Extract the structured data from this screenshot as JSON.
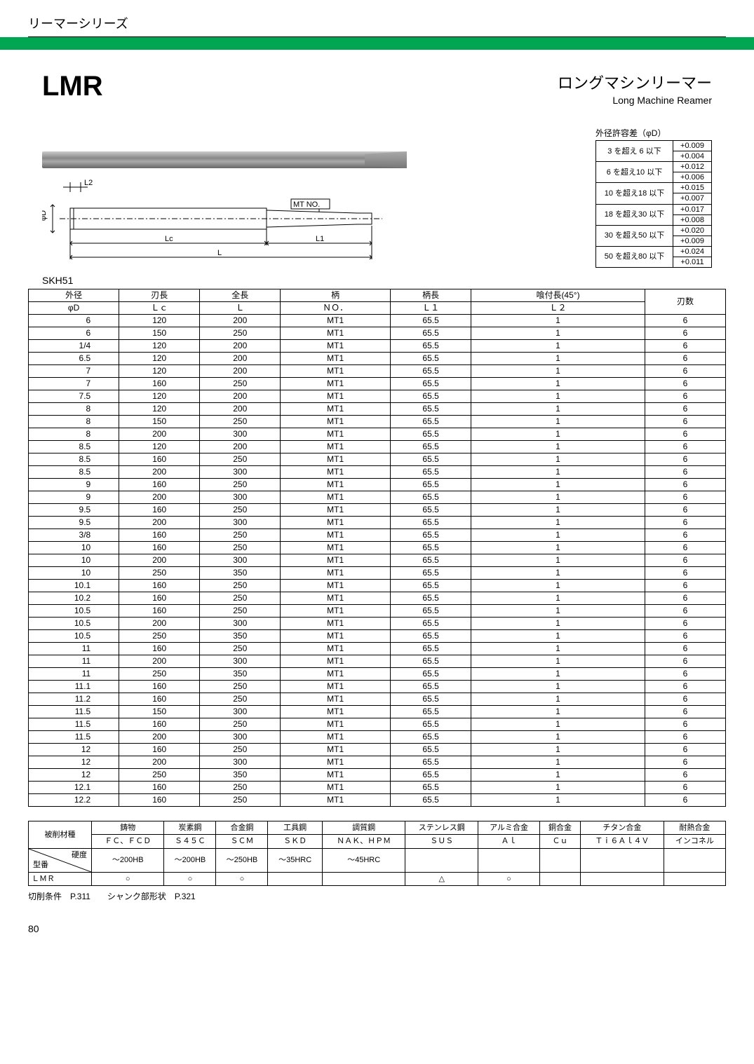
{
  "series_header": "リーマーシリーズ",
  "product_code": "LMR",
  "product_name_jp": "ロングマシンリーマー",
  "product_name_en": "Long Machine Reamer",
  "material_label": "SKH51",
  "diagram_labels": {
    "l2": "L2",
    "phid": "φD",
    "mtno": "MT NO.",
    "lc": "Lc",
    "l1": "L1",
    "l": "L"
  },
  "tolerance": {
    "title": "外径許容差（φD）",
    "rows": [
      {
        "range": "3 を超え 6 以下",
        "upper": "+0.009",
        "lower": "+0.004"
      },
      {
        "range": "6 を超え10 以下",
        "upper": "+0.012",
        "lower": "+0.006"
      },
      {
        "range": "10 を超え18 以下",
        "upper": "+0.015",
        "lower": "+0.007"
      },
      {
        "range": "18 を超え30 以下",
        "upper": "+0.017",
        "lower": "+0.008"
      },
      {
        "range": "30 を超え50 以下",
        "upper": "+0.020",
        "lower": "+0.009"
      },
      {
        "range": "50 を超え80 以下",
        "upper": "+0.024",
        "lower": "+0.011"
      }
    ]
  },
  "main_headers_top": [
    "外径",
    "刃長",
    "全長",
    "柄",
    "柄長",
    "喰付長(45°)",
    "刃数"
  ],
  "main_headers_bottom": [
    "φD",
    "Ｌｃ",
    "Ｌ",
    "ＮＯ．",
    "Ｌ１",
    "Ｌ２"
  ],
  "main_rows": [
    [
      "6",
      "120",
      "200",
      "MT1",
      "65.5",
      "1",
      "6"
    ],
    [
      "6",
      "150",
      "250",
      "MT1",
      "65.5",
      "1",
      "6"
    ],
    [
      "1/4",
      "120",
      "200",
      "MT1",
      "65.5",
      "1",
      "6"
    ],
    [
      "6.5",
      "120",
      "200",
      "MT1",
      "65.5",
      "1",
      "6"
    ],
    [
      "7",
      "120",
      "200",
      "MT1",
      "65.5",
      "1",
      "6"
    ],
    [
      "7",
      "160",
      "250",
      "MT1",
      "65.5",
      "1",
      "6"
    ],
    [
      "7.5",
      "120",
      "200",
      "MT1",
      "65.5",
      "1",
      "6"
    ],
    [
      "8",
      "120",
      "200",
      "MT1",
      "65.5",
      "1",
      "6"
    ],
    [
      "8",
      "150",
      "250",
      "MT1",
      "65.5",
      "1",
      "6"
    ],
    [
      "8",
      "200",
      "300",
      "MT1",
      "65.5",
      "1",
      "6"
    ],
    [
      "8.5",
      "120",
      "200",
      "MT1",
      "65.5",
      "1",
      "6"
    ],
    [
      "8.5",
      "160",
      "250",
      "MT1",
      "65.5",
      "1",
      "6"
    ],
    [
      "8.5",
      "200",
      "300",
      "MT1",
      "65.5",
      "1",
      "6"
    ],
    [
      "9",
      "160",
      "250",
      "MT1",
      "65.5",
      "1",
      "6"
    ],
    [
      "9",
      "200",
      "300",
      "MT1",
      "65.5",
      "1",
      "6"
    ],
    [
      "9.5",
      "160",
      "250",
      "MT1",
      "65.5",
      "1",
      "6"
    ],
    [
      "9.5",
      "200",
      "300",
      "MT1",
      "65.5",
      "1",
      "6"
    ],
    [
      "3/8",
      "160",
      "250",
      "MT1",
      "65.5",
      "1",
      "6"
    ],
    [
      "10",
      "160",
      "250",
      "MT1",
      "65.5",
      "1",
      "6"
    ],
    [
      "10",
      "200",
      "300",
      "MT1",
      "65.5",
      "1",
      "6"
    ],
    [
      "10",
      "250",
      "350",
      "MT1",
      "65.5",
      "1",
      "6"
    ],
    [
      "10.1",
      "160",
      "250",
      "MT1",
      "65.5",
      "1",
      "6"
    ],
    [
      "10.2",
      "160",
      "250",
      "MT1",
      "65.5",
      "1",
      "6"
    ],
    [
      "10.5",
      "160",
      "250",
      "MT1",
      "65.5",
      "1",
      "6"
    ],
    [
      "10.5",
      "200",
      "300",
      "MT1",
      "65.5",
      "1",
      "6"
    ],
    [
      "10.5",
      "250",
      "350",
      "MT1",
      "65.5",
      "1",
      "6"
    ],
    [
      "11",
      "160",
      "250",
      "MT1",
      "65.5",
      "1",
      "6"
    ],
    [
      "11",
      "200",
      "300",
      "MT1",
      "65.5",
      "1",
      "6"
    ],
    [
      "11",
      "250",
      "350",
      "MT1",
      "65.5",
      "1",
      "6"
    ],
    [
      "11.1",
      "160",
      "250",
      "MT1",
      "65.5",
      "1",
      "6"
    ],
    [
      "11.2",
      "160",
      "250",
      "MT1",
      "65.5",
      "1",
      "6"
    ],
    [
      "11.5",
      "150",
      "300",
      "MT1",
      "65.5",
      "1",
      "6"
    ],
    [
      "11.5",
      "160",
      "250",
      "MT1",
      "65.5",
      "1",
      "6"
    ],
    [
      "11.5",
      "200",
      "300",
      "MT1",
      "65.5",
      "1",
      "6"
    ],
    [
      "12",
      "160",
      "250",
      "MT1",
      "65.5",
      "1",
      "6"
    ],
    [
      "12",
      "200",
      "300",
      "MT1",
      "65.5",
      "1",
      "6"
    ],
    [
      "12",
      "250",
      "350",
      "MT1",
      "65.5",
      "1",
      "6"
    ],
    [
      "12.1",
      "160",
      "250",
      "MT1",
      "65.5",
      "1",
      "6"
    ],
    [
      "12.2",
      "160",
      "250",
      "MT1",
      "65.5",
      "1",
      "6"
    ]
  ],
  "material": {
    "row1_label": "被削材種",
    "row1": [
      "鋳物",
      "炭素鋼",
      "合金鋼",
      "工具鋼",
      "調質鋼",
      "ステンレス鋼",
      "アルミ合金",
      "銅合金",
      "チタン合金",
      "耐熱合金"
    ],
    "row2": [
      "ＦＣ、ＦＣＤ",
      "Ｓ４５Ｃ",
      "ＳＣＭ",
      "ＳＫＤ",
      "ＮＡＫ、ＨＰＭ",
      "ＳＵＳ",
      "Ａｌ",
      "Ｃｕ",
      "Ｔｉ６Ａｌ４Ｖ",
      "インコネル"
    ],
    "diag_top": "硬度",
    "diag_bot": "型番",
    "row3": [
      "～200HB",
      "～200HB",
      "～250HB",
      "～35HRC",
      "～45HRC",
      "",
      "",
      "",
      "",
      ""
    ],
    "row4_label": "ＬＭＲ",
    "row4": [
      "○",
      "○",
      "○",
      "",
      "",
      "△",
      "○",
      "",
      "",
      ""
    ]
  },
  "footnote": "切削条件　P.311　　シャンク部形状　P.321",
  "page_no": "80"
}
